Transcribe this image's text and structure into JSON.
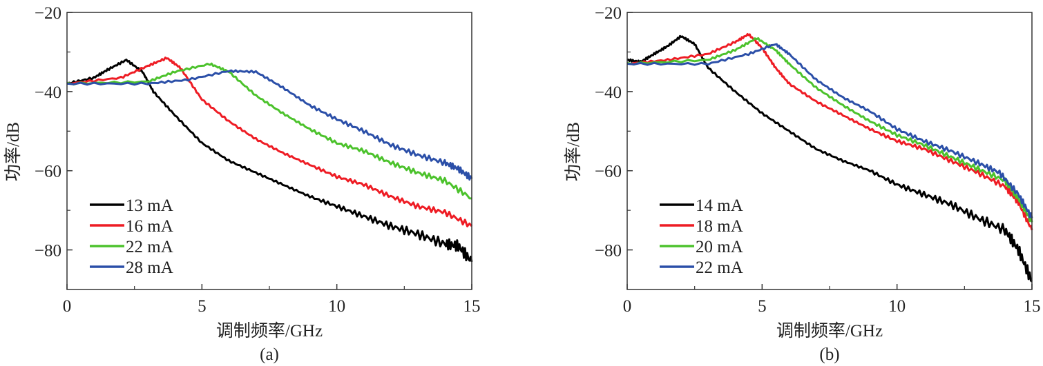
{
  "chart_data": [
    {
      "type": "line",
      "panel_label": "(a)",
      "xlabel": "调制频率/GHz",
      "ylabel": "功率/dB",
      "xlim": [
        0,
        15
      ],
      "ylim": [
        -90,
        -20
      ],
      "xticks": [
        "0",
        "5",
        "10",
        "15"
      ],
      "yticks": [
        "-20",
        "-40",
        "-60",
        "-80"
      ],
      "legend_placement": "bottom-left",
      "series": [
        {
          "name": "13 mA",
          "color": "#000000",
          "x": [
            0,
            1,
            1.5,
            2.2,
            2.8,
            3.2,
            4,
            5,
            6,
            7,
            8,
            9,
            10,
            11,
            12,
            13,
            14,
            14.5,
            15
          ],
          "y": [
            -38,
            -36.5,
            -34.5,
            -32,
            -35,
            -40,
            -46,
            -53,
            -57.5,
            -60.5,
            -63.5,
            -66.5,
            -69,
            -71.5,
            -74,
            -76,
            -78.5,
            -79,
            -83
          ]
        },
        {
          "name": "16 mA",
          "color": "#ee1c24",
          "x": [
            0,
            2,
            3,
            3.7,
            4.2,
            5,
            6,
            7,
            8,
            9,
            10,
            11,
            12,
            13,
            14,
            15
          ],
          "y": [
            -38,
            -36.5,
            -33.5,
            -31.5,
            -34,
            -42,
            -47.5,
            -52,
            -55.5,
            -58.5,
            -61.5,
            -63.5,
            -66.5,
            -69,
            -70.5,
            -74
          ]
        },
        {
          "name": "22 mA",
          "color": "#4cc22c",
          "x": [
            0,
            3,
            4,
            5.3,
            6,
            7,
            8,
            9,
            10,
            11,
            12,
            13,
            14,
            15
          ],
          "y": [
            -38,
            -37.5,
            -35,
            -33,
            -35,
            -41,
            -45.5,
            -49.5,
            -53,
            -55,
            -58,
            -60.5,
            -62.5,
            -67
          ]
        },
        {
          "name": "28 mA",
          "color": "#2b4fa8",
          "x": [
            0,
            3,
            4.5,
            6,
            7,
            8,
            9,
            10,
            11,
            12,
            13,
            14,
            14.5,
            15
          ],
          "y": [
            -38,
            -38,
            -37,
            -34.8,
            -35,
            -39,
            -43.5,
            -47,
            -50,
            -53.5,
            -56,
            -58,
            -59.5,
            -62
          ]
        }
      ]
    },
    {
      "type": "line",
      "panel_label": "(b)",
      "xlabel": "调制频率/GHz",
      "ylabel": "功率/dB",
      "xlim": [
        0,
        15
      ],
      "ylim": [
        -90,
        -20
      ],
      "xticks": [
        "0",
        "5",
        "10",
        "15"
      ],
      "yticks": [
        "-20",
        "-40",
        "-60",
        "-80"
      ],
      "legend_placement": "bottom-left",
      "series": [
        {
          "name": "14 mA",
          "color": "#000000",
          "x": [
            0,
            0.5,
            1,
            1.5,
            2,
            2.5,
            3,
            4,
            5,
            6,
            7,
            8,
            9,
            10,
            11,
            12,
            13,
            14,
            14.5,
            15
          ],
          "y": [
            -32,
            -32.5,
            -30.5,
            -28.5,
            -26,
            -28,
            -34,
            -40,
            -45.5,
            -50,
            -54.5,
            -57.5,
            -60,
            -63.5,
            -66,
            -68.5,
            -72,
            -75,
            -80,
            -88
          ]
        },
        {
          "name": "18 mA",
          "color": "#ee1c24",
          "x": [
            0,
            1.5,
            3,
            4,
            4.5,
            5,
            5.5,
            6,
            7,
            8,
            9,
            10,
            11,
            12,
            13,
            14,
            14.5,
            15
          ],
          "y": [
            -33,
            -32,
            -30.5,
            -27.5,
            -25.5,
            -29,
            -34,
            -38,
            -42.5,
            -46,
            -49.5,
            -52.5,
            -54.5,
            -57.5,
            -60.5,
            -64,
            -68,
            -75
          ]
        },
        {
          "name": "20 mA",
          "color": "#4cc22c",
          "x": [
            0,
            3,
            4,
            4.8,
            5.5,
            6,
            7,
            8,
            9,
            10,
            11,
            12,
            13,
            14,
            14.5,
            15
          ],
          "y": [
            -33,
            -32,
            -29.5,
            -26.5,
            -29.5,
            -33,
            -39,
            -43.5,
            -47.5,
            -51,
            -53.5,
            -56.5,
            -59.5,
            -62.5,
            -67,
            -73
          ]
        },
        {
          "name": "22 mA",
          "color": "#2b4fa8",
          "x": [
            0,
            3,
            4.5,
            5.5,
            6,
            7,
            8,
            9,
            10,
            11,
            12,
            13,
            13.8,
            14.5,
            15
          ],
          "y": [
            -33,
            -33,
            -30.5,
            -28,
            -30.5,
            -37,
            -41.5,
            -45,
            -49.5,
            -52.5,
            -55,
            -58,
            -60.5,
            -66,
            -72
          ]
        }
      ]
    }
  ]
}
